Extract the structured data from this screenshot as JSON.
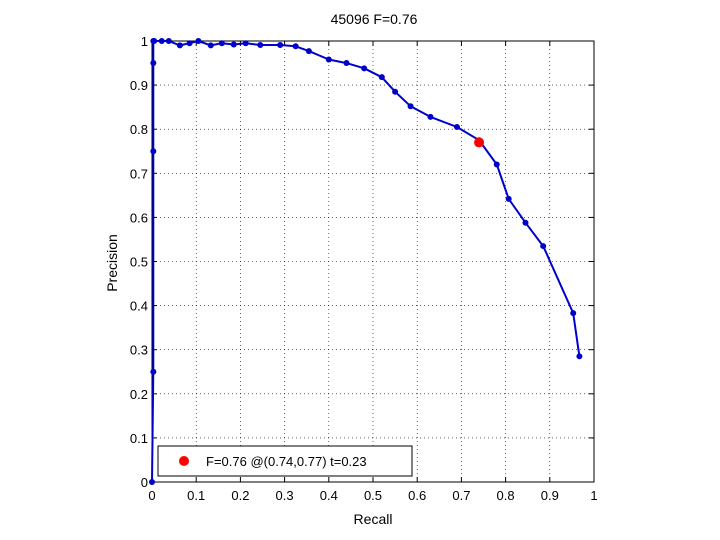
{
  "chart_data": {
    "type": "line",
    "title": "45096 F=0.76",
    "xlabel": "Recall",
    "ylabel": "Precision",
    "xlim": [
      0,
      1
    ],
    "ylim": [
      0,
      1
    ],
    "xticks": [
      0,
      0.1,
      0.2,
      0.3,
      0.4,
      0.5,
      0.6,
      0.7,
      0.8,
      0.9,
      1
    ],
    "yticks": [
      0,
      0.1,
      0.2,
      0.3,
      0.4,
      0.5,
      0.6,
      0.7,
      0.8,
      0.9,
      1
    ],
    "xtick_labels": [
      "0",
      "0.1",
      "0.2",
      "0.3",
      "0.4",
      "0.5",
      "0.6",
      "0.7",
      "0.8",
      "0.9",
      "1"
    ],
    "ytick_labels": [
      "0",
      "0.1",
      "0.2",
      "0.3",
      "0.4",
      "0.5",
      "0.6",
      "0.7",
      "0.8",
      "0.9",
      "1"
    ],
    "grid": true,
    "series": [
      {
        "color": "#0000cc",
        "x": [
          0.0,
          0.003,
          0.003,
          0.003,
          0.003,
          0.005,
          0.022,
          0.038,
          0.063,
          0.085,
          0.105,
          0.133,
          0.158,
          0.185,
          0.212,
          0.245,
          0.29,
          0.325,
          0.355,
          0.4,
          0.44,
          0.48,
          0.52,
          0.55,
          0.585,
          0.63,
          0.69,
          0.74,
          0.78,
          0.807,
          0.845,
          0.885,
          0.953,
          0.967
        ],
        "y": [
          0.0,
          0.25,
          0.75,
          0.95,
          1.0,
          1.0,
          1.0,
          1.0,
          0.99,
          0.995,
          1.0,
          0.99,
          0.995,
          0.992,
          0.995,
          0.991,
          0.991,
          0.988,
          0.977,
          0.958,
          0.95,
          0.938,
          0.918,
          0.885,
          0.852,
          0.828,
          0.805,
          0.775,
          0.72,
          0.642,
          0.588,
          0.535,
          0.383,
          0.285
        ]
      }
    ],
    "highlight_point": {
      "x": 0.74,
      "y": 0.77,
      "color": "#ff0000"
    },
    "legend": {
      "entries": [
        "F=0.76 @(0.74,0.77) t=0.23"
      ],
      "placement": "bottom-left"
    }
  }
}
